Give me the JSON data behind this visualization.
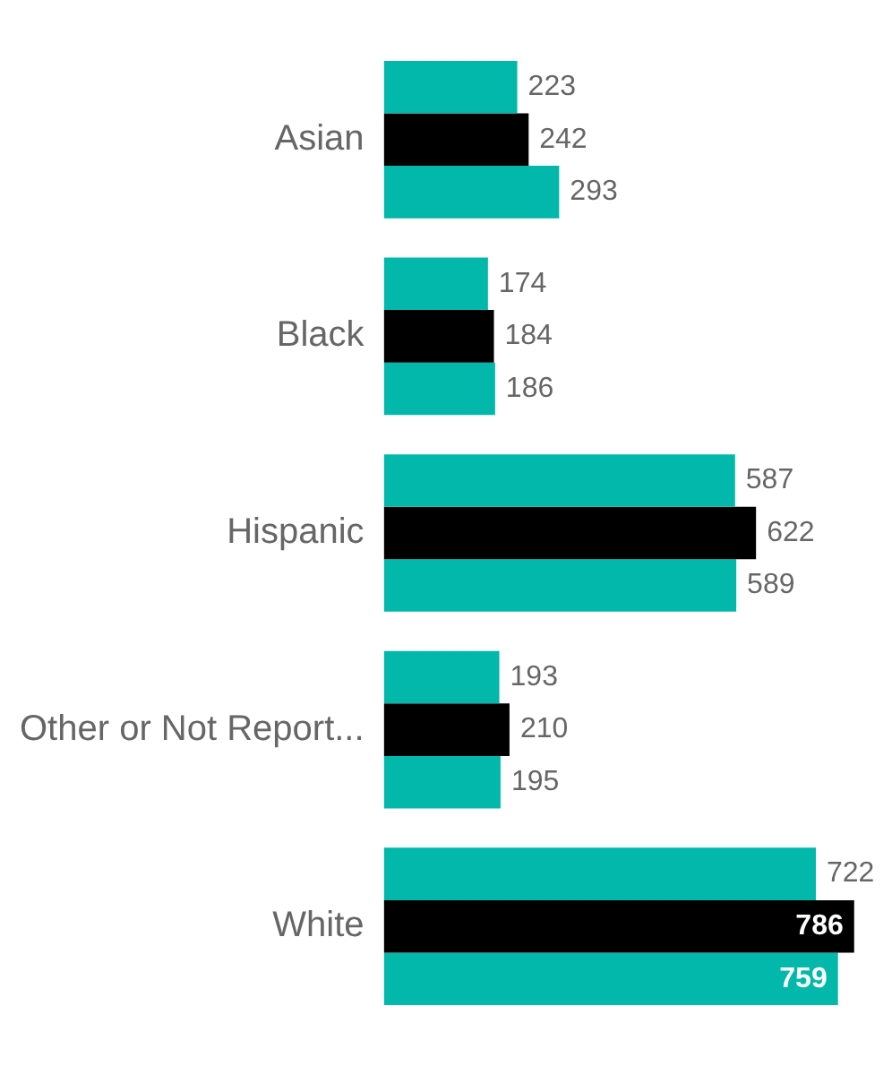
{
  "chart_data": {
    "type": "bar",
    "orientation": "horizontal",
    "categories": [
      "Asian",
      "Black",
      "Hispanic",
      "Other or Not Report...",
      "White"
    ],
    "series": [
      {
        "color": "#01b8aa",
        "values": [
          223,
          174,
          587,
          193,
          722
        ]
      },
      {
        "color": "#000000",
        "values": [
          242,
          184,
          622,
          210,
          786
        ]
      },
      {
        "color": "#01b8aa",
        "values": [
          293,
          186,
          589,
          195,
          759
        ]
      }
    ],
    "data_labels": true,
    "legend": false
  }
}
